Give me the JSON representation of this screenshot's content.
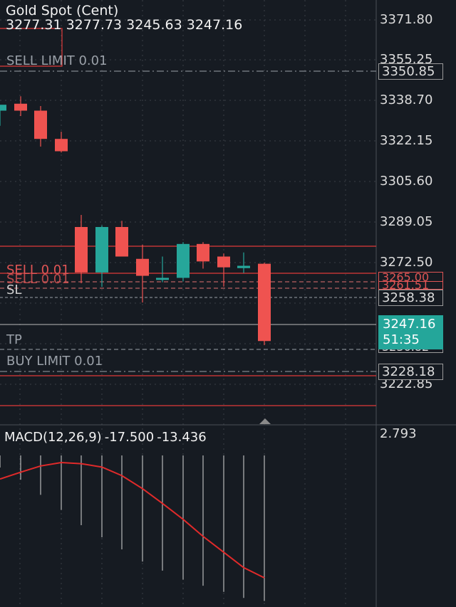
{
  "symbol": {
    "title": "Gold Spot (Cent)",
    "open": "3277.31",
    "high": "3277.73",
    "low": "3245.63",
    "close": "3247.16"
  },
  "price_axis": {
    "labels": [
      "3371.80",
      "3355.25",
      "3338.70",
      "3322.15",
      "3305.60",
      "3289.05",
      "3272.50",
      "3222.85"
    ]
  },
  "orders": {
    "sell_limit_top": "SELL LIMIT 0.01",
    "sell_limit_top_price": "3350.85",
    "sell": "SELL 0.01",
    "sell_price": "3265.00",
    "sl": "SL",
    "sl_price": "3261.51",
    "tag_price": "3258.38",
    "tp": "TP",
    "tp_price": "3236.82",
    "buy_limit": "BUY LIMIT 0.01",
    "buy_limit_price": "3228.18"
  },
  "current_price": {
    "price": "3247.16",
    "countdown": "51:35"
  },
  "macd": {
    "label": "MACD(12,26,9)",
    "value1": "-17.500",
    "value2": "-13.436",
    "axis_top": "2.793"
  },
  "colors": {
    "background": "#161b22",
    "bull": "#26a69a",
    "bear": "#ef5350",
    "order_line": "#e03a3a",
    "grid": "#3a3f47"
  },
  "chart_data": {
    "type": "candlestick",
    "title": "Gold Spot (Cent)",
    "ylim": [
      3214.58,
      3379.98
    ],
    "candles": [
      {
        "o": 3336.9,
        "h": 3338.7,
        "l": 3331.0,
        "c": 3339.2
      },
      {
        "o": 3339.6,
        "h": 3342.5,
        "l": 3334.8,
        "c": 3336.9
      },
      {
        "o": 3336.9,
        "h": 3338.7,
        "l": 3322.9,
        "c": 3325.9
      },
      {
        "o": 3325.9,
        "h": 3328.7,
        "l": 3320.6,
        "c": 3321.1
      },
      {
        "o": 3291.6,
        "h": 3296.3,
        "l": 3269.7,
        "c": 3273.9
      },
      {
        "o": 3273.9,
        "h": 3292.2,
        "l": 3268.3,
        "c": 3291.6
      },
      {
        "o": 3291.6,
        "h": 3294.0,
        "l": 3280.6,
        "c": 3280.1
      },
      {
        "o": 3279.2,
        "h": 3284.7,
        "l": 3262.2,
        "c": 3272.6
      },
      {
        "o": 3271.0,
        "h": 3280.1,
        "l": 3270.1,
        "c": 3271.8
      },
      {
        "o": 3271.8,
        "h": 3285.7,
        "l": 3270.4,
        "c": 3285.0
      },
      {
        "o": 3285.0,
        "h": 3285.7,
        "l": 3275.4,
        "c": 3278.2
      },
      {
        "o": 3280.1,
        "h": 3281.3,
        "l": 3268.4,
        "c": 3275.9
      },
      {
        "o": 3275.6,
        "h": 3281.7,
        "l": 3273.7,
        "c": 3276.5
      },
      {
        "o": 3277.3,
        "h": 3277.7,
        "l": 3245.6,
        "c": 3247.2
      }
    ],
    "macd": {
      "line": [
        2.0,
        3.2,
        4.3,
        4.9,
        4.7,
        4.1,
        2.6,
        0.3,
        -2.3,
        -5.1,
        -8.1,
        -10.9,
        -13.6,
        -15.4
      ],
      "histogram": [
        -2.0,
        -4.0,
        -6.5,
        -9.0,
        -11.5,
        -13.5,
        -15.5,
        -17.5,
        -19.0,
        -20.5,
        -21.5,
        -22.5,
        -23.5,
        -24.0
      ]
    }
  }
}
